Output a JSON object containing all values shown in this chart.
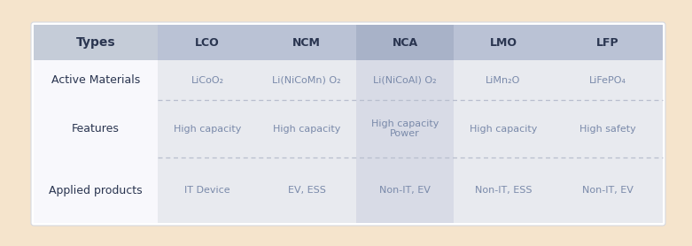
{
  "outer_bg": "#f5e4cc",
  "table_bg": "#ffffff",
  "header_row_color": "#b8c2d8",
  "header_types_color": "#c8d0e0",
  "col_alt_color": "#d8dde8",
  "col_nca_color": "#c8cfd8",
  "col_white": "#f0f2f7",
  "row_label_bg": "#ffffff",
  "body_col_colors": [
    "#e8eaf2",
    "#e8eaf2",
    "#d8dce8",
    "#e8eaf2",
    "#e8eaf2"
  ],
  "row_label_text_color": "#3a3a3a",
  "col_header_text_color": "#3a3a3a",
  "body_text_color": "#7a8aaa",
  "body_label_text_color": "#3a3a3a",
  "col_headers": [
    "LCO",
    "NCM",
    "NCA",
    "LMO",
    "LFP"
  ],
  "active_materials": [
    "LiCoO₂",
    "Li(NiCoMn) O₂",
    "Li(NiCoAl) O₂",
    "LiMn₂O",
    "LiFePO₄"
  ],
  "features": [
    "High capacity",
    "High capacity",
    "High capacity\nPower",
    "High capacity",
    "High safety"
  ],
  "applied_products": [
    "IT Device",
    "EV, ESS",
    "Non-IT, EV",
    "Non-IT, ESS",
    "Non-IT, EV"
  ],
  "row_labels": [
    "Active Materials",
    "Features",
    "Applied products"
  ],
  "figsize": [
    7.81,
    2.78
  ],
  "dpi": 100
}
